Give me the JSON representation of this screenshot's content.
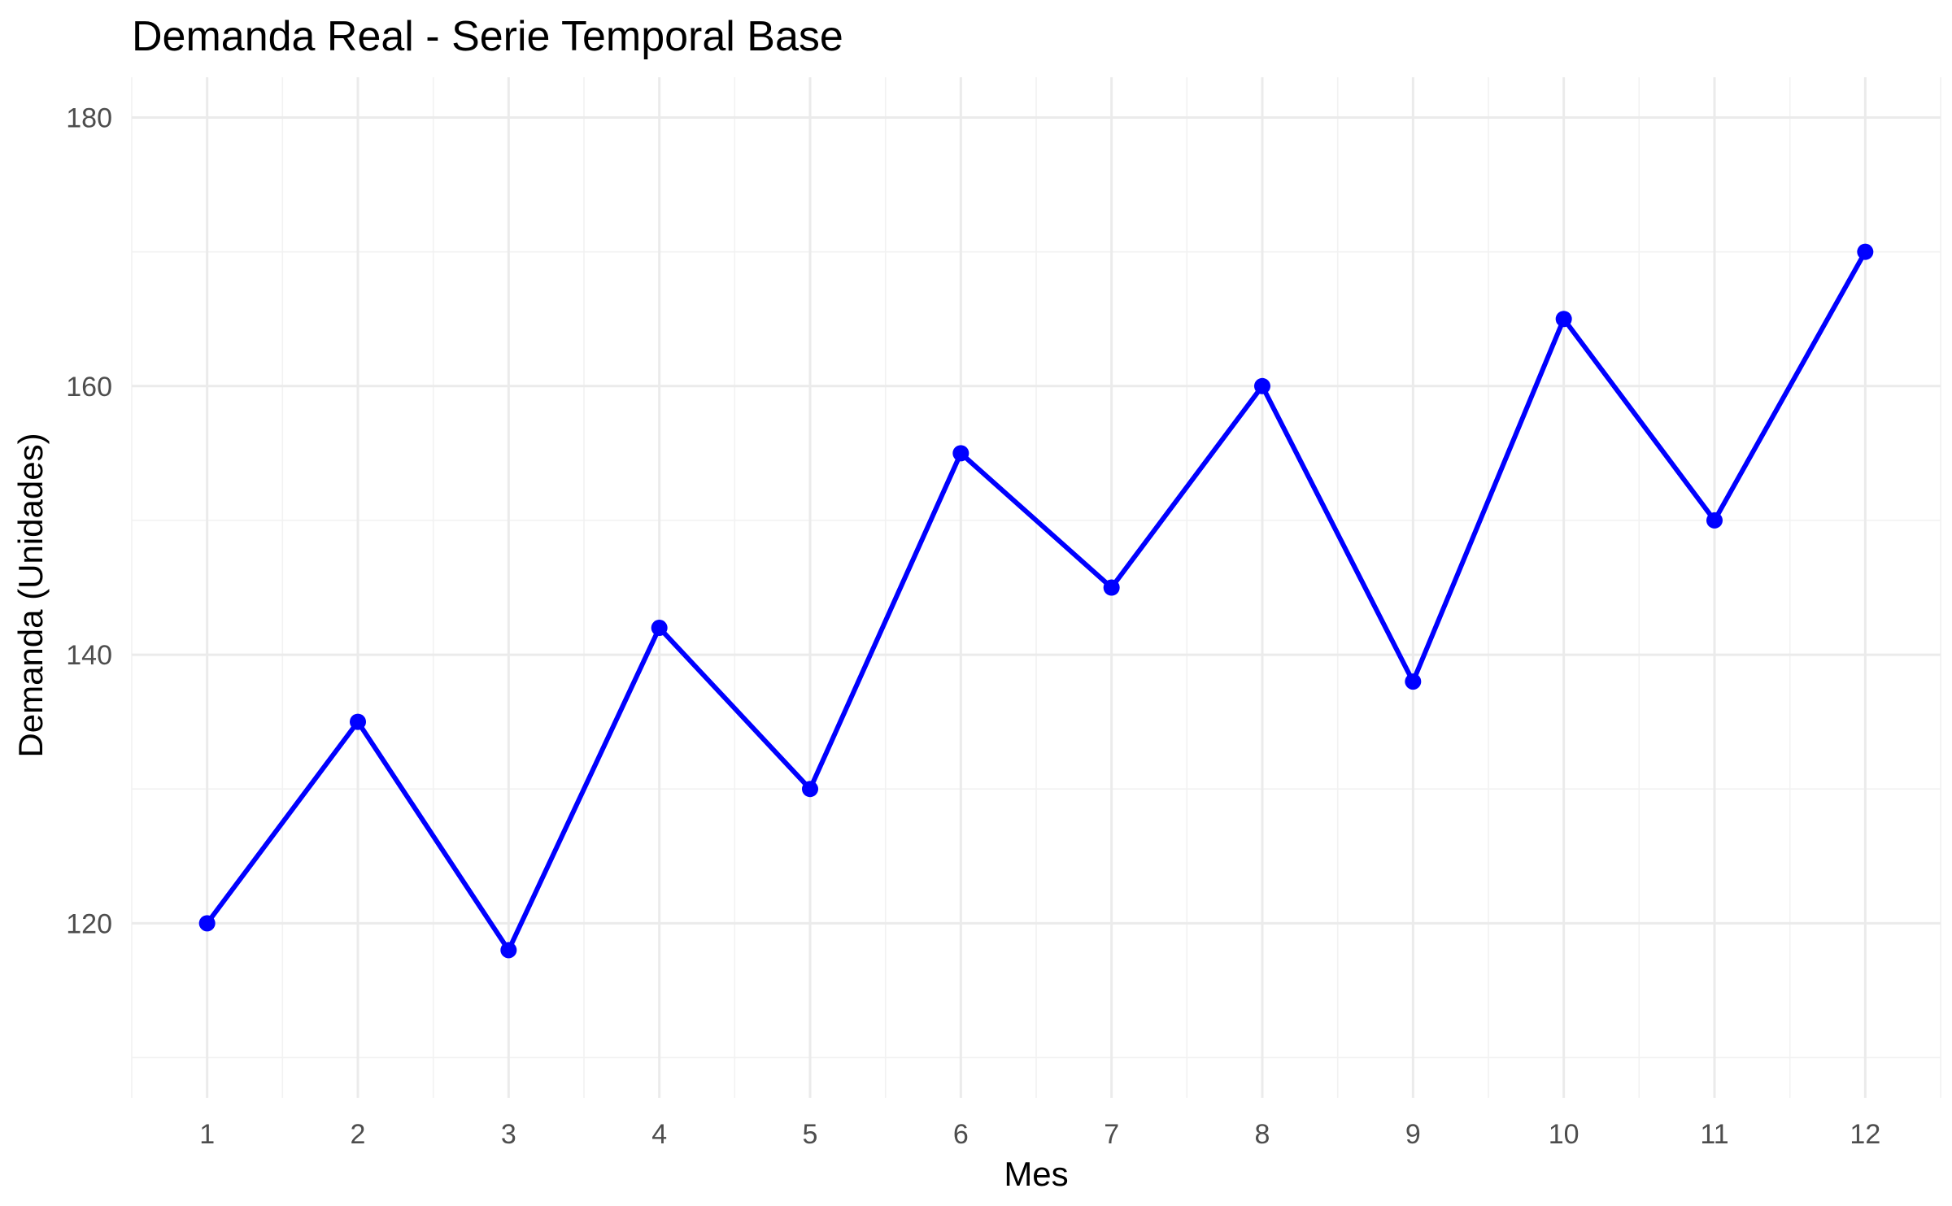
{
  "chart_data": {
    "type": "line",
    "title": "Demanda Real - Serie Temporal Base",
    "xlabel": "Mes",
    "ylabel": "Demanda (Unidades)",
    "x": [
      1,
      2,
      3,
      4,
      5,
      6,
      7,
      8,
      9,
      10,
      11,
      12
    ],
    "series": [
      {
        "values": [
          120,
          135,
          118,
          142,
          130,
          155,
          145,
          160,
          138,
          165,
          150,
          170
        ],
        "color": "#0000ff"
      }
    ],
    "xlim": [
      0.5,
      12.5
    ],
    "ylim": [
      107,
      183
    ],
    "xticks": [
      1,
      2,
      3,
      4,
      5,
      6,
      7,
      8,
      9,
      10,
      11,
      12
    ],
    "yticks": [
      120,
      140,
      160,
      180
    ],
    "grid": true,
    "legend": false
  }
}
